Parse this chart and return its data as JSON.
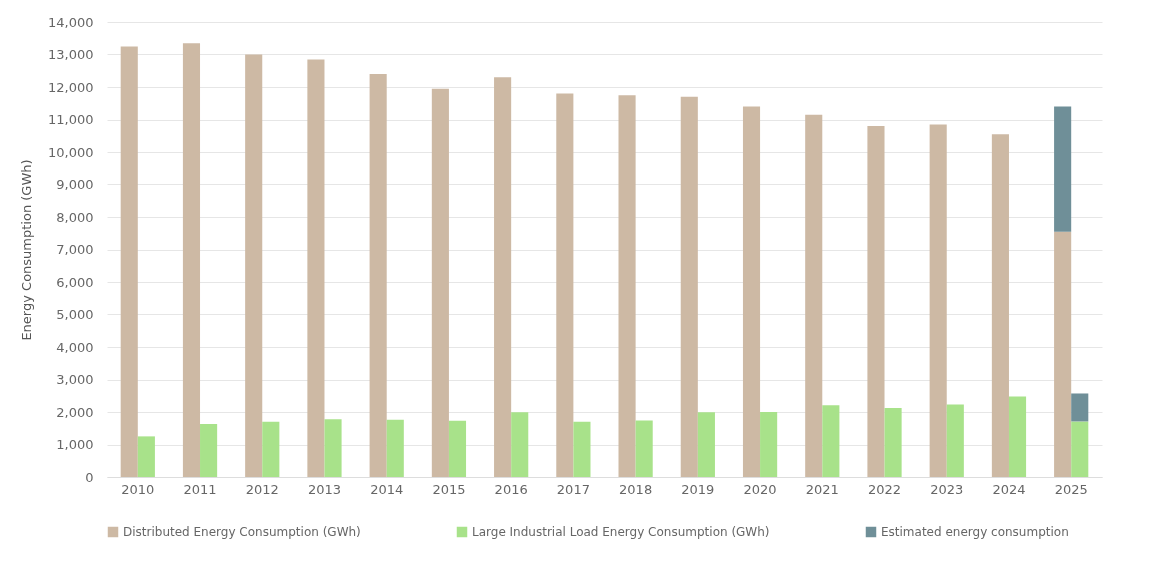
{
  "chart_data": {
    "type": "bar",
    "ylabel": "Energy Consumption (GWh)",
    "categories": [
      "2010",
      "2011",
      "2012",
      "2013",
      "2014",
      "2015",
      "2016",
      "2017",
      "2018",
      "2019",
      "2020",
      "2021",
      "2022",
      "2023",
      "2024",
      "2025"
    ],
    "series": [
      {
        "name": "Distributed Energy Consumption (GWh)",
        "color": "#cdb9a4",
        "values": [
          13250,
          13350,
          13000,
          12850,
          12400,
          11950,
          12300,
          11800,
          11750,
          11700,
          11400,
          11150,
          10800,
          10850,
          10550,
          7550
        ]
      },
      {
        "name": "Large Industrial Load Energy Consumption (GWh)",
        "color": "#a8e28a",
        "values": [
          1250,
          1630,
          1700,
          1780,
          1760,
          1730,
          1990,
          1700,
          1740,
          1990,
          2000,
          2210,
          2120,
          2230,
          2480,
          1710
        ]
      },
      {
        "name": "Estimated energy consumption",
        "color": "#6f8f98",
        "values": [
          null,
          null,
          null,
          null,
          null,
          null,
          null,
          null,
          null,
          null,
          null,
          null,
          null,
          null,
          null,
          3850
        ],
        "base": [
          null,
          null,
          null,
          null,
          null,
          null,
          null,
          null,
          null,
          null,
          null,
          null,
          null,
          null,
          null,
          7550
        ]
      },
      {
        "color": "#6f8f98",
        "values": [
          null,
          null,
          null,
          null,
          null,
          null,
          null,
          null,
          null,
          null,
          null,
          null,
          null,
          null,
          null,
          860
        ],
        "base": [
          null,
          null,
          null,
          null,
          null,
          null,
          null,
          null,
          null,
          null,
          null,
          null,
          null,
          null,
          null,
          1710
        ]
      }
    ],
    "ylim": [
      0,
      14000
    ],
    "yticks": [
      0,
      {
        "value": 1000,
        "label": "1,000"
      },
      {
        "value": 2000,
        "label": "2,000"
      },
      {
        "value": 3000,
        "label": "3,000"
      },
      {
        "value": 4000,
        "label": "4,000"
      },
      {
        "value": 5000,
        "label": "5,000"
      },
      {
        "value": 6000,
        "label": "6,000"
      },
      {
        "value": 7000,
        "label": "7,000"
      },
      {
        "value": 8000,
        "label": "8,000"
      },
      {
        "value": 9000,
        "label": "9,000"
      },
      {
        "value": 10000,
        "label": "10,000"
      },
      {
        "value": 11000,
        "label": "11,000"
      },
      {
        "value": 12000,
        "label": "12,000"
      },
      {
        "value": 13000,
        "label": "13,000"
      },
      {
        "value": 14000,
        "label": "14,000"
      }
    ],
    "grid": "y",
    "legend": "bottom"
  }
}
